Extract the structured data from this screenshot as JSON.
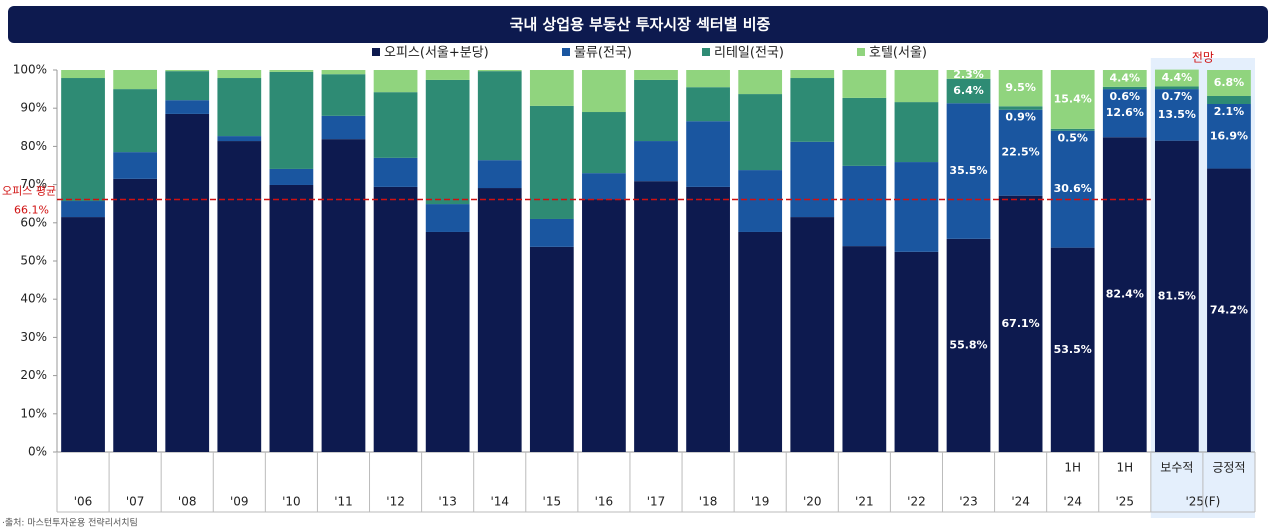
{
  "chart_data": {
    "type": "stacked_bar_100",
    "title": "국내 상업용 부동산 투자시장 섹터별 비중",
    "categories": [
      "'06",
      "'07",
      "'08",
      "'09",
      "'10",
      "'11",
      "'12",
      "'13",
      "'14",
      "'15",
      "'16",
      "'17",
      "'18",
      "'19",
      "'20",
      "'21",
      "'22",
      "'23",
      "'24",
      "'24",
      "'25",
      null,
      null
    ],
    "periods": [
      null,
      null,
      null,
      null,
      null,
      null,
      null,
      null,
      null,
      null,
      null,
      null,
      null,
      null,
      null,
      null,
      null,
      null,
      null,
      "1H",
      "1H",
      "보수적",
      "긍정적"
    ],
    "forecast_group": {
      "label": "'25(F)",
      "title": "전망"
    },
    "series": [
      {
        "name": "오피스(서울+분당)",
        "color": "#0d1a4f",
        "values": [
          61.5,
          71.5,
          88.5,
          81.4,
          69.9,
          81.9,
          69.4,
          57.6,
          69.1,
          53.7,
          66.2,
          70.9,
          69.4,
          57.6,
          61.5,
          53.9,
          52.4,
          55.8,
          67.1,
          53.5,
          82.4,
          81.5,
          74.2
        ],
        "value_labels": [
          null,
          null,
          null,
          null,
          null,
          null,
          null,
          null,
          null,
          null,
          null,
          null,
          null,
          null,
          null,
          null,
          null,
          "55.8%",
          "67.1%",
          "53.5%",
          "82.4%",
          "81.5%",
          "74.2%"
        ]
      },
      {
        "name": "물류(전국)",
        "color": "#1a56a0",
        "values": [
          4.2,
          7,
          3.6,
          1.3,
          4.2,
          6.1,
          7.6,
          7.3,
          7.3,
          7.3,
          6.8,
          10.5,
          17.2,
          16.2,
          19.7,
          21,
          23.5,
          35.5,
          22.5,
          30.6,
          12.6,
          13.5,
          16.9
        ],
        "value_labels": [
          null,
          null,
          null,
          null,
          null,
          null,
          null,
          null,
          null,
          null,
          null,
          null,
          null,
          null,
          null,
          null,
          null,
          "35.5%",
          "22.5%",
          "30.6%",
          "12.6%",
          "13.5%",
          "16.9%"
        ]
      },
      {
        "name": "리테일(전국)",
        "color": "#2e8b74",
        "values": [
          32.2,
          16.5,
          7.6,
          15.2,
          25.4,
          10.9,
          17.2,
          32.5,
          23.3,
          29.6,
          16,
          16,
          8.9,
          19.9,
          16.7,
          17.8,
          15.7,
          6.4,
          0.9,
          0.5,
          0.6,
          0.7,
          2.1
        ],
        "value_labels": [
          null,
          null,
          null,
          null,
          null,
          null,
          null,
          null,
          null,
          null,
          null,
          null,
          null,
          null,
          null,
          null,
          null,
          "6.4%",
          "0.9%",
          "0.5%",
          "0.6%",
          "0.7%",
          "2.1%"
        ]
      },
      {
        "name": "호텔(서울)",
        "color": "#90d47e",
        "values": [
          2.1,
          5,
          0.3,
          2.1,
          0.5,
          1.1,
          5.8,
          2.6,
          0.3,
          9.4,
          11,
          2.6,
          4.5,
          6.3,
          2.1,
          7.3,
          8.4,
          2.3,
          9.5,
          15.4,
          4.4,
          4.4,
          6.8
        ],
        "value_labels": [
          null,
          null,
          null,
          null,
          null,
          null,
          null,
          null,
          null,
          null,
          null,
          null,
          null,
          null,
          null,
          null,
          null,
          "2.3%",
          "9.5%",
          "15.4%",
          "4.4%",
          "4.4%",
          "6.8%"
        ]
      }
    ],
    "reference_line": {
      "value": 66.1,
      "label": "오피스 평균",
      "value_label": "66.1%",
      "color": "#d01010"
    },
    "ylim": [
      0,
      100
    ],
    "yticks": [
      {
        "value": 0,
        "label": "0%"
      },
      {
        "value": 10,
        "label": "10%"
      },
      {
        "value": 20,
        "label": "20%"
      },
      {
        "value": 30,
        "label": "30%"
      },
      {
        "value": 40,
        "label": "40%"
      },
      {
        "value": 50,
        "label": "50%"
      },
      {
        "value": 60,
        "label": "60%"
      },
      {
        "value": 70,
        "label": "70%"
      },
      {
        "value": 80,
        "label": "80%"
      },
      {
        "value": 90,
        "label": "90%"
      },
      {
        "value": 100,
        "label": "100%"
      }
    ],
    "source": "·출처: 마스턴투자운용 전략리서치팀"
  }
}
